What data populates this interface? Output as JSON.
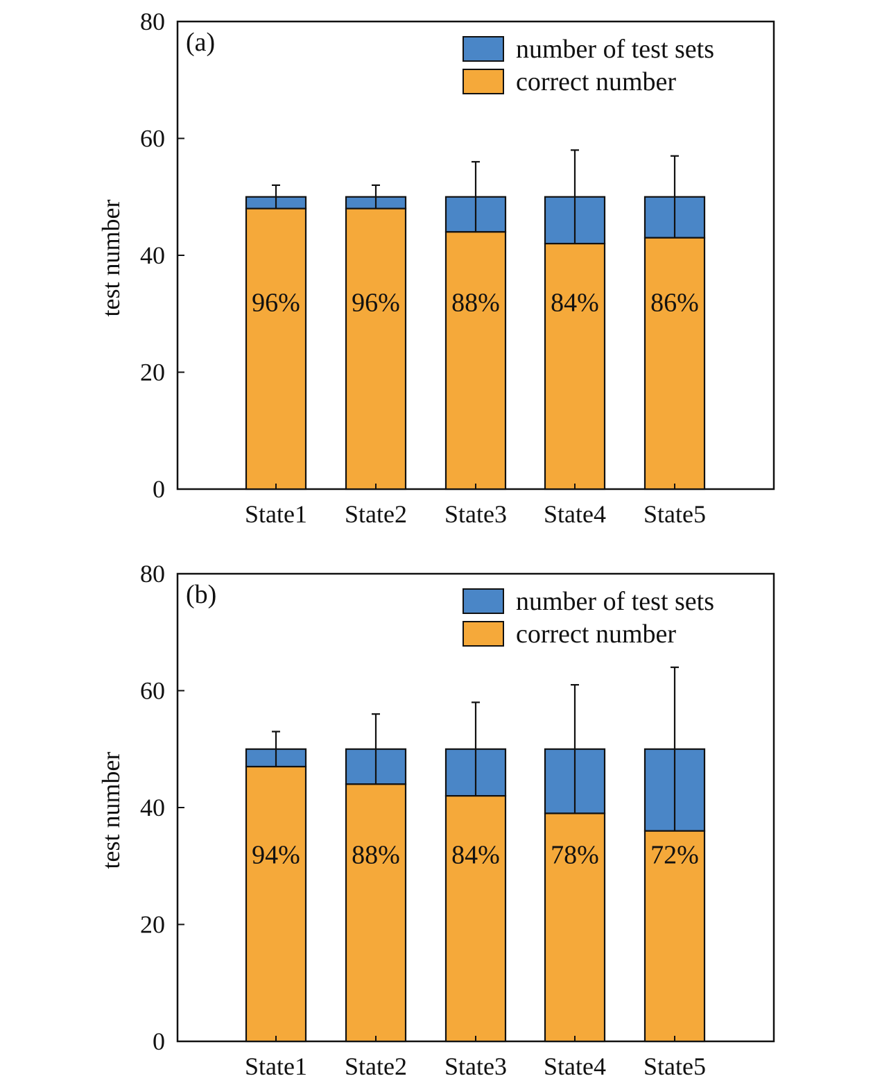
{
  "colors": {
    "total": "#4a86c7",
    "correct": "#f5a93a",
    "stroke": "#111111"
  },
  "legend": {
    "total_label": "number of test sets",
    "correct_label": "correct number"
  },
  "chart_data": [
    {
      "type": "bar",
      "panel_label": "(a)",
      "ylabel": "test number",
      "ylim": [
        0,
        80
      ],
      "yticks": [
        0,
        20,
        40,
        60,
        80
      ],
      "categories": [
        "State1",
        "State2",
        "State3",
        "State4",
        "State5"
      ],
      "series": [
        {
          "name": "number of test sets",
          "values": [
            50,
            50,
            50,
            50,
            50
          ],
          "error_upper": [
            52,
            52,
            56,
            58,
            57
          ]
        },
        {
          "name": "correct number",
          "values": [
            48,
            48,
            44,
            42,
            43
          ]
        }
      ],
      "data_labels": [
        "96%",
        "96%",
        "88%",
        "84%",
        "86%"
      ],
      "legend_position": "top-right",
      "grid": false
    },
    {
      "type": "bar",
      "panel_label": "(b)",
      "ylabel": "test number",
      "ylim": [
        0,
        80
      ],
      "yticks": [
        0,
        20,
        40,
        60,
        80
      ],
      "categories": [
        "State1",
        "State2",
        "State3",
        "State4",
        "State5"
      ],
      "series": [
        {
          "name": "number of test sets",
          "values": [
            50,
            50,
            50,
            50,
            50
          ],
          "error_upper": [
            53,
            56,
            58,
            61,
            64
          ]
        },
        {
          "name": "correct number",
          "values": [
            47,
            44,
            42,
            39,
            36
          ]
        }
      ],
      "data_labels": [
        "94%",
        "88%",
        "84%",
        "78%",
        "72%"
      ],
      "legend_position": "top-right",
      "grid": false
    }
  ]
}
